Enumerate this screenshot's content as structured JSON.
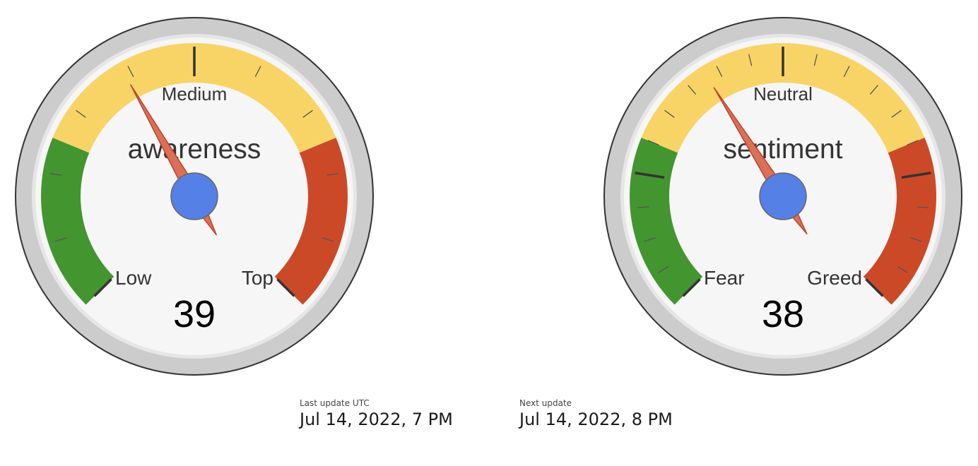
{
  "chart_data": [
    {
      "type": "gauge",
      "title": "awareness",
      "value": 39,
      "value_label": "39",
      "range": [
        0,
        100
      ],
      "zones": [
        {
          "name": "Low",
          "from": 0,
          "to": 25,
          "color": "#43952f"
        },
        {
          "name": "Medium",
          "from": 25,
          "to": 75,
          "color": "#f8d467"
        },
        {
          "name": "Top",
          "from": 75,
          "to": 100,
          "color": "#cc4928"
        }
      ],
      "range_labels": {
        "low": "Low",
        "mid": "Medium",
        "high": "Top"
      },
      "major_ticks": [
        50
      ],
      "minor_ticks": [
        10,
        20,
        30,
        40,
        60,
        70,
        80,
        90
      ]
    },
    {
      "type": "gauge",
      "title": "sentiment",
      "value": 38,
      "value_label": "38",
      "range": [
        0,
        100
      ],
      "zones": [
        {
          "name": "Fear",
          "from": 0,
          "to": 25,
          "color": "#43952f"
        },
        {
          "name": "Neutral",
          "from": 25,
          "to": 75,
          "color": "#f8d467"
        },
        {
          "name": "Greed",
          "from": 75,
          "to": 100,
          "color": "#cc4928"
        }
      ],
      "range_labels": {
        "low": "Fear",
        "mid": "Neutral",
        "high": "Greed"
      },
      "major_ticks": [
        20,
        50,
        80
      ],
      "minor_ticks": [
        5,
        10,
        15,
        25,
        30,
        35,
        40,
        45,
        55,
        60,
        65,
        70,
        75,
        85,
        90,
        95
      ]
    }
  ],
  "colors": {
    "needle": "#db7058",
    "needle_stroke": "#c0402a",
    "hub": "#5580e6",
    "hub_stroke": "#666666",
    "bezel": "#cccccc",
    "face": "#f6f6f6"
  },
  "updates": {
    "last_label": "Last update UTC",
    "last_value": "Jul 14, 2022, 7 PM",
    "next_label": "Next update",
    "next_value": "Jul 14, 2022, 8 PM"
  }
}
